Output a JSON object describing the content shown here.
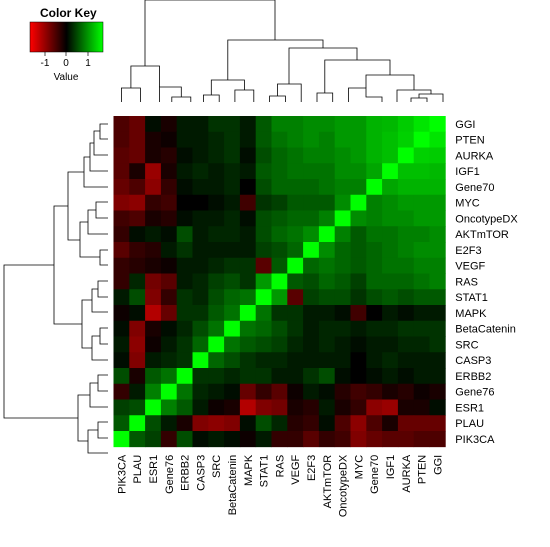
{
  "chart_data": {
    "type": "heatmap",
    "title": "",
    "color_key": {
      "title": "Color Key",
      "xlabel": "Value",
      "ticks": [
        "-1",
        "0",
        "1"
      ],
      "range": [
        -1,
        1
      ],
      "low_color": "#ff0000",
      "mid_color": "#000000",
      "high_color": "#00ff00"
    },
    "row_labels": [
      "GGI",
      "PTEN",
      "AURKA",
      "IGF1",
      "Gene70",
      "MYC",
      "OncotypeDX",
      "AKTmTOR",
      "E2F3",
      "VEGF",
      "RAS",
      "STAT1",
      "MAPK",
      "BetaCatenin",
      "SRC",
      "CASP3",
      "ERBB2",
      "Gene76",
      "ESR1",
      "PLAU",
      "PIK3CA"
    ],
    "col_labels": [
      "PIK3CA",
      "PLAU",
      "ESR1",
      "Gene76",
      "ERBB2",
      "CASP3",
      "SRC",
      "BetaCatenin",
      "MAPK",
      "STAT1",
      "RAS",
      "VEGF",
      "E2F3",
      "AKTmTOR",
      "OncotypeDX",
      "MYC",
      "Gene70",
      "IGF1",
      "AURKA",
      "PTEN",
      "GGI"
    ],
    "values": [
      [
        -0.3,
        -0.4,
        0.05,
        -0.1,
        0.1,
        0.1,
        0.2,
        0.2,
        0.1,
        0.35,
        0.5,
        0.5,
        0.55,
        0.55,
        0.6,
        0.6,
        0.7,
        0.72,
        0.8,
        0.9,
        1.0
      ],
      [
        -0.3,
        -0.4,
        -0.1,
        -0.05,
        0.1,
        0.1,
        0.15,
        0.2,
        0.1,
        0.35,
        0.45,
        0.5,
        0.55,
        0.5,
        0.6,
        0.6,
        0.7,
        0.75,
        0.82,
        1.0,
        0.9
      ],
      [
        -0.35,
        -0.4,
        -0.1,
        -0.15,
        0.05,
        0.1,
        0.15,
        0.2,
        0.05,
        0.3,
        0.4,
        0.45,
        0.5,
        0.5,
        0.55,
        0.6,
        0.7,
        0.75,
        1.0,
        0.82,
        0.8
      ],
      [
        -0.35,
        -0.1,
        -0.6,
        -0.1,
        0.1,
        0.15,
        0.1,
        0.15,
        0.1,
        0.35,
        0.4,
        0.45,
        0.45,
        0.45,
        0.55,
        0.55,
        0.65,
        1.0,
        0.75,
        0.75,
        0.72
      ],
      [
        -0.4,
        -0.3,
        -0.55,
        -0.2,
        0.05,
        0.1,
        0.1,
        0.15,
        0.0,
        0.3,
        0.4,
        0.4,
        0.4,
        0.45,
        0.5,
        0.5,
        1.0,
        0.65,
        0.7,
        0.7,
        0.7
      ],
      [
        -0.5,
        -0.55,
        -0.2,
        -0.25,
        0.0,
        0.0,
        0.05,
        0.1,
        -0.25,
        0.2,
        0.25,
        0.35,
        0.35,
        0.35,
        0.55,
        1.0,
        0.5,
        0.55,
        0.6,
        0.6,
        0.6
      ],
      [
        -0.25,
        -0.3,
        -0.1,
        -0.15,
        0.05,
        0.1,
        0.1,
        0.15,
        0.05,
        0.3,
        0.35,
        0.4,
        0.4,
        0.5,
        1.0,
        0.55,
        0.5,
        0.55,
        0.55,
        0.6,
        0.6
      ],
      [
        -0.2,
        0.05,
        0.1,
        0.05,
        0.3,
        0.1,
        0.15,
        0.15,
        0.1,
        0.3,
        0.4,
        0.45,
        0.55,
        1.0,
        0.5,
        0.35,
        0.45,
        0.45,
        0.5,
        0.5,
        0.55
      ],
      [
        -0.35,
        -0.2,
        -0.15,
        0.1,
        0.2,
        0.1,
        0.1,
        0.1,
        0.1,
        0.25,
        0.3,
        0.4,
        1.0,
        0.55,
        0.4,
        0.35,
        0.4,
        0.45,
        0.5,
        0.55,
        0.55
      ],
      [
        -0.2,
        -0.15,
        -0.1,
        -0.05,
        0.1,
        0.1,
        0.15,
        0.2,
        0.2,
        -0.35,
        0.35,
        1.0,
        0.4,
        0.45,
        0.4,
        0.35,
        0.4,
        0.45,
        0.45,
        0.5,
        0.5
      ],
      [
        -0.2,
        0.15,
        -0.45,
        -0.35,
        0.1,
        0.15,
        0.25,
        0.3,
        0.2,
        0.6,
        1.0,
        0.35,
        0.3,
        0.4,
        0.35,
        0.25,
        0.4,
        0.4,
        0.4,
        0.45,
        0.5
      ],
      [
        0.1,
        0.3,
        -0.5,
        -0.2,
        0.2,
        0.15,
        0.3,
        0.4,
        0.45,
        1.0,
        0.6,
        -0.35,
        0.25,
        0.3,
        0.3,
        0.2,
        0.3,
        0.35,
        0.3,
        0.35,
        0.35
      ],
      [
        -0.05,
        0.05,
        -0.7,
        -0.4,
        0.2,
        0.2,
        0.35,
        0.45,
        1.0,
        0.45,
        0.2,
        0.2,
        0.1,
        0.1,
        0.05,
        -0.25,
        0.0,
        0.1,
        0.05,
        0.1,
        0.1
      ],
      [
        0.05,
        -0.5,
        -0.1,
        0.05,
        0.15,
        0.3,
        0.45,
        1.0,
        0.45,
        0.4,
        0.3,
        0.2,
        0.1,
        0.15,
        0.15,
        0.1,
        0.15,
        0.15,
        0.2,
        0.2,
        0.2
      ],
      [
        0.1,
        -0.55,
        -0.05,
        0.1,
        0.2,
        0.4,
        1.0,
        0.45,
        0.35,
        0.3,
        0.25,
        0.15,
        0.1,
        0.15,
        0.1,
        0.05,
        0.1,
        0.1,
        0.15,
        0.15,
        0.2
      ],
      [
        0.05,
        -0.5,
        0.1,
        0.15,
        0.2,
        1.0,
        0.4,
        0.3,
        0.2,
        0.15,
        0.15,
        0.1,
        0.1,
        0.1,
        0.1,
        0.0,
        0.1,
        0.15,
        0.1,
        0.1,
        0.1
      ],
      [
        0.3,
        -0.1,
        0.35,
        0.45,
        1.0,
        0.2,
        0.2,
        0.15,
        0.2,
        0.2,
        0.1,
        0.1,
        0.2,
        0.3,
        0.05,
        0.0,
        0.05,
        0.1,
        0.05,
        0.1,
        0.1
      ],
      [
        -0.2,
        0.1,
        0.5,
        1.0,
        0.45,
        0.15,
        0.1,
        0.05,
        -0.4,
        -0.2,
        -0.35,
        -0.05,
        0.1,
        0.05,
        -0.15,
        -0.25,
        -0.2,
        -0.1,
        -0.15,
        -0.05,
        -0.1
      ],
      [
        0.25,
        0.3,
        1.0,
        0.5,
        0.35,
        0.1,
        -0.05,
        -0.1,
        -0.7,
        -0.5,
        -0.45,
        -0.1,
        -0.15,
        0.1,
        -0.1,
        -0.2,
        -0.55,
        -0.6,
        -0.1,
        -0.1,
        0.05
      ],
      [
        0.35,
        1.0,
        0.3,
        0.1,
        -0.1,
        -0.5,
        -0.55,
        -0.5,
        0.05,
        0.3,
        0.15,
        -0.15,
        -0.2,
        0.05,
        -0.3,
        -0.55,
        -0.3,
        -0.1,
        -0.4,
        -0.4,
        -0.4
      ],
      [
        1.0,
        0.35,
        0.25,
        -0.2,
        0.3,
        0.05,
        0.1,
        0.05,
        -0.05,
        0.1,
        -0.2,
        -0.2,
        -0.35,
        -0.2,
        -0.25,
        -0.5,
        -0.4,
        -0.35,
        -0.35,
        -0.3,
        -0.3
      ]
    ]
  }
}
